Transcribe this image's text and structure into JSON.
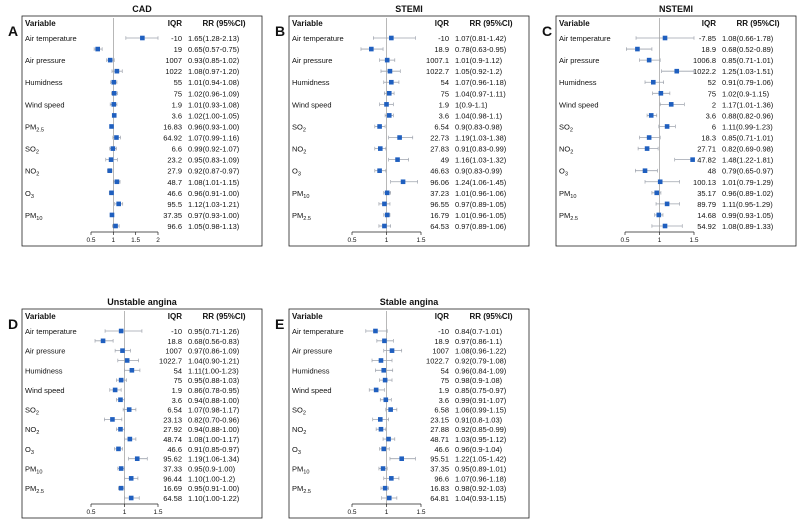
{
  "chart_data": [
    {
      "type": "scatter",
      "letter": "A",
      "title": "CAD",
      "header_variable": "Variable",
      "header_iqr": "IQR",
      "header_rr": "RR (95%CI)",
      "xlim": [
        0.5,
        2
      ],
      "xticks": [
        0.5,
        1,
        1.5,
        2
      ],
      "xticklabels": [
        "0.5",
        "1",
        "1.5",
        "2"
      ],
      "reference_line": 1,
      "variables": [
        "Air temperature",
        "Air pressure",
        "Humidness",
        "Wind speed",
        "PM2.5",
        "SO2",
        "NO2",
        "O3",
        "PM10"
      ],
      "rows": [
        {
          "iqr": "-10",
          "rr": "1.65(1.28-2.13)",
          "est": 1.65,
          "lo": 1.28,
          "hi": 2.13
        },
        {
          "iqr": "19",
          "rr": "0.65(0.57-0.75)",
          "est": 0.65,
          "lo": 0.57,
          "hi": 0.75
        },
        {
          "iqr": "1007",
          "rr": "0.93(0.85-1.02)",
          "est": 0.93,
          "lo": 0.85,
          "hi": 1.02
        },
        {
          "iqr": "1022",
          "rr": "1.08(0.97-1.20)",
          "est": 1.08,
          "lo": 0.97,
          "hi": 1.2
        },
        {
          "iqr": "55",
          "rr": "1.01(0.94-1.08)",
          "est": 1.01,
          "lo": 0.94,
          "hi": 1.08
        },
        {
          "iqr": "75",
          "rr": "1.02(0.96-1.09)",
          "est": 1.02,
          "lo": 0.96,
          "hi": 1.09
        },
        {
          "iqr": "1.9",
          "rr": "1.01(0.93-1.08)",
          "est": 1.01,
          "lo": 0.93,
          "hi": 1.08
        },
        {
          "iqr": "3.6",
          "rr": "1.02(1.00-1.05)",
          "est": 1.02,
          "lo": 1.0,
          "hi": 1.05
        },
        {
          "iqr": "16.83",
          "rr": "0.96(0.93-1.00)",
          "est": 0.96,
          "lo": 0.93,
          "hi": 1.0
        },
        {
          "iqr": "64.92",
          "rr": "1.07(0.99-1.16)",
          "est": 1.07,
          "lo": 0.99,
          "hi": 1.16
        },
        {
          "iqr": "6.6",
          "rr": "0.99(0.92-1.07)",
          "est": 0.99,
          "lo": 0.92,
          "hi": 1.07
        },
        {
          "iqr": "23.2",
          "rr": "0.95(0.83-1.09)",
          "est": 0.95,
          "lo": 0.83,
          "hi": 1.09
        },
        {
          "iqr": "27.9",
          "rr": "0.92(0.87-0.97)",
          "est": 0.92,
          "lo": 0.87,
          "hi": 0.97
        },
        {
          "iqr": "48.7",
          "rr": "1.08(1.01-1.15)",
          "est": 1.08,
          "lo": 1.01,
          "hi": 1.15
        },
        {
          "iqr": "46.6",
          "rr": "0.96(0.91-1.00)",
          "est": 0.96,
          "lo": 0.91,
          "hi": 1.0
        },
        {
          "iqr": "95.5",
          "rr": "1.12(1.03-1.21)",
          "est": 1.12,
          "lo": 1.03,
          "hi": 1.21
        },
        {
          "iqr": "37.35",
          "rr": "0.97(0.93-1.00)",
          "est": 0.97,
          "lo": 0.93,
          "hi": 1.0
        },
        {
          "iqr": "96.6",
          "rr": "1.05(0.98-1.13)",
          "est": 1.05,
          "lo": 0.98,
          "hi": 1.13
        }
      ]
    },
    {
      "type": "scatter",
      "letter": "B",
      "title": "STEMI",
      "header_variable": "Variable",
      "header_iqr": "IQR",
      "header_rr": "RR (95%CI)",
      "xlim": [
        0.5,
        1.5
      ],
      "xticks": [
        0.5,
        1,
        1.5
      ],
      "xticklabels": [
        "0.5",
        "1",
        "1.5"
      ],
      "reference_line": 1,
      "variables": [
        "Air temperature",
        "Air pressure",
        "Humidness",
        "Wind speed",
        "SO2",
        "NO2",
        "O3",
        "PM10",
        "PM2.5"
      ],
      "rows": [
        {
          "iqr": "-10",
          "rr": "1.07(0.81-1.42)",
          "est": 1.07,
          "lo": 0.81,
          "hi": 1.42
        },
        {
          "iqr": "18.9",
          "rr": "0.78(0.63-0.95)",
          "est": 0.78,
          "lo": 0.63,
          "hi": 0.95
        },
        {
          "iqr": "1007.1",
          "rr": "1.01(0.9-1.12)",
          "est": 1.01,
          "lo": 0.9,
          "hi": 1.12
        },
        {
          "iqr": "1022.7",
          "rr": "1.05(0.92-1.2)",
          "est": 1.05,
          "lo": 0.92,
          "hi": 1.2
        },
        {
          "iqr": "54",
          "rr": "1.07(0.96-1.18)",
          "est": 1.07,
          "lo": 0.96,
          "hi": 1.18
        },
        {
          "iqr": "75",
          "rr": "1.04(0.97-1.11)",
          "est": 1.04,
          "lo": 0.97,
          "hi": 1.11
        },
        {
          "iqr": "1.9",
          "rr": "1(0.9-1.1)",
          "est": 1.0,
          "lo": 0.9,
          "hi": 1.1
        },
        {
          "iqr": "3.6",
          "rr": "1.04(0.98-1.1)",
          "est": 1.04,
          "lo": 0.98,
          "hi": 1.1
        },
        {
          "iqr": "6.54",
          "rr": "0.9(0.83-0.98)",
          "est": 0.9,
          "lo": 0.83,
          "hi": 0.98
        },
        {
          "iqr": "22.73",
          "rr": "1.19(1.03-1.38)",
          "est": 1.19,
          "lo": 1.03,
          "hi": 1.38
        },
        {
          "iqr": "27.83",
          "rr": "0.91(0.83-0.99)",
          "est": 0.91,
          "lo": 0.83,
          "hi": 0.99
        },
        {
          "iqr": "49",
          "rr": "1.16(1.03-1.32)",
          "est": 1.16,
          "lo": 1.03,
          "hi": 1.32
        },
        {
          "iqr": "46.63",
          "rr": "0.9(0.83-0.99)",
          "est": 0.9,
          "lo": 0.83,
          "hi": 0.99
        },
        {
          "iqr": "96.06",
          "rr": "1.24(1.06-1.45)",
          "est": 1.24,
          "lo": 1.06,
          "hi": 1.45
        },
        {
          "iqr": "37.23",
          "rr": "1.01(0.96-1.06)",
          "est": 1.01,
          "lo": 0.96,
          "hi": 1.06
        },
        {
          "iqr": "96.55",
          "rr": "0.97(0.89-1.05)",
          "est": 0.97,
          "lo": 0.89,
          "hi": 1.05
        },
        {
          "iqr": "16.79",
          "rr": "1.01(0.96-1.05)",
          "est": 1.01,
          "lo": 0.96,
          "hi": 1.05
        },
        {
          "iqr": "64.53",
          "rr": "0.97(0.89-1.06)",
          "est": 0.97,
          "lo": 0.89,
          "hi": 1.06
        }
      ]
    },
    {
      "type": "scatter",
      "letter": "C",
      "title": "NSTEMI",
      "header_variable": "Variable",
      "header_iqr": "IQR",
      "header_rr": "RR (95%CI)",
      "xlim": [
        0.5,
        1.5
      ],
      "xticks": [
        0.5,
        1,
        1.5
      ],
      "xticklabels": [
        "0.5",
        "1",
        "1.5"
      ],
      "reference_line": 1,
      "variables": [
        "Air temperature",
        "Air pressure",
        "Humidness",
        "Wind speed",
        "SO2",
        "NO2",
        "O3",
        "PM10",
        "PM2.5"
      ],
      "rows": [
        {
          "iqr": "-7.85",
          "rr": "1.08(0.66-1.78)",
          "est": 1.08,
          "lo": 0.66,
          "hi": 1.78
        },
        {
          "iqr": "18.9",
          "rr": "0.68(0.52-0.89)",
          "est": 0.68,
          "lo": 0.52,
          "hi": 0.89
        },
        {
          "iqr": "1006.8",
          "rr": "0.85(0.71-1.01)",
          "est": 0.85,
          "lo": 0.71,
          "hi": 1.01
        },
        {
          "iqr": "1022.2",
          "rr": "1.25(1.03-1.51)",
          "est": 1.25,
          "lo": 1.03,
          "hi": 1.51
        },
        {
          "iqr": "52",
          "rr": "0.91(0.79-1.06)",
          "est": 0.91,
          "lo": 0.79,
          "hi": 1.06
        },
        {
          "iqr": "75",
          "rr": "1.02(0.9-1.15)",
          "est": 1.02,
          "lo": 0.9,
          "hi": 1.15
        },
        {
          "iqr": "2",
          "rr": "1.17(1.01-1.36)",
          "est": 1.17,
          "lo": 1.01,
          "hi": 1.36
        },
        {
          "iqr": "3.6",
          "rr": "0.88(0.82-0.96)",
          "est": 0.88,
          "lo": 0.82,
          "hi": 0.96
        },
        {
          "iqr": "6",
          "rr": "1.11(0.99-1.23)",
          "est": 1.11,
          "lo": 0.99,
          "hi": 1.23
        },
        {
          "iqr": "18.3",
          "rr": "0.85(0.71-1.01)",
          "est": 0.85,
          "lo": 0.71,
          "hi": 1.01
        },
        {
          "iqr": "27.71",
          "rr": "0.82(0.69-0.98)",
          "est": 0.82,
          "lo": 0.69,
          "hi": 0.98
        },
        {
          "iqr": "47.82",
          "rr": "1.48(1.22-1.81)",
          "est": 1.48,
          "lo": 1.22,
          "hi": 1.81
        },
        {
          "iqr": "48",
          "rr": "0.79(0.65-0.97)",
          "est": 0.79,
          "lo": 0.65,
          "hi": 0.97
        },
        {
          "iqr": "100.13",
          "rr": "1.01(0.79-1.29)",
          "est": 1.01,
          "lo": 0.79,
          "hi": 1.29
        },
        {
          "iqr": "35.17",
          "rr": "0.96(0.89-1.02)",
          "est": 0.96,
          "lo": 0.89,
          "hi": 1.02
        },
        {
          "iqr": "89.79",
          "rr": "1.11(0.95-1.29)",
          "est": 1.11,
          "lo": 0.95,
          "hi": 1.29
        },
        {
          "iqr": "14.68",
          "rr": "0.99(0.93-1.05)",
          "est": 0.99,
          "lo": 0.93,
          "hi": 1.05
        },
        {
          "iqr": "54.92",
          "rr": "1.08(0.89-1.33)",
          "est": 1.08,
          "lo": 0.89,
          "hi": 1.33
        }
      ]
    },
    {
      "type": "scatter",
      "letter": "D",
      "title": "Unstable angina",
      "header_variable": "Variable",
      "header_iqr": "IQR",
      "header_rr": "RR (95%CI)",
      "xlim": [
        0.5,
        1.5
      ],
      "xticks": [
        0.5,
        1,
        1.5
      ],
      "xticklabels": [
        "0.5",
        "1",
        "1.5"
      ],
      "reference_line": 1,
      "variables": [
        "Air temperature",
        "Air pressure",
        "Humidness",
        "Wind speed",
        "SO2",
        "NO2",
        "O3",
        "PM10",
        "PM2.5"
      ],
      "rows": [
        {
          "iqr": "-10",
          "rr": "0.95(0.71-1.26)",
          "est": 0.95,
          "lo": 0.71,
          "hi": 1.26
        },
        {
          "iqr": "18.8",
          "rr": "0.68(0.56-0.83)",
          "est": 0.68,
          "lo": 0.56,
          "hi": 0.83
        },
        {
          "iqr": "1007",
          "rr": "0.97(0.86-1.09)",
          "est": 0.97,
          "lo": 0.86,
          "hi": 1.09
        },
        {
          "iqr": "1022.7",
          "rr": "1.04(0.90-1.21)",
          "est": 1.04,
          "lo": 0.9,
          "hi": 1.21
        },
        {
          "iqr": "54",
          "rr": "1.11(1.00-1.23)",
          "est": 1.11,
          "lo": 1.0,
          "hi": 1.23
        },
        {
          "iqr": "75",
          "rr": "0.95(0.88-1.03)",
          "est": 0.95,
          "lo": 0.88,
          "hi": 1.03
        },
        {
          "iqr": "1.9",
          "rr": "0.86(0.78-0.95)",
          "est": 0.86,
          "lo": 0.78,
          "hi": 0.95
        },
        {
          "iqr": "3.6",
          "rr": "0.94(0.88-1.00)",
          "est": 0.94,
          "lo": 0.88,
          "hi": 1.0
        },
        {
          "iqr": "6.54",
          "rr": "1.07(0.98-1.17)",
          "est": 1.07,
          "lo": 0.98,
          "hi": 1.17
        },
        {
          "iqr": "23.13",
          "rr": "0.82(0.70-0.96)",
          "est": 0.82,
          "lo": 0.7,
          "hi": 0.96
        },
        {
          "iqr": "27.92",
          "rr": "0.94(0.88-1.00)",
          "est": 0.94,
          "lo": 0.88,
          "hi": 1.0
        },
        {
          "iqr": "48.74",
          "rr": "1.08(1.00-1.17)",
          "est": 1.08,
          "lo": 1.0,
          "hi": 1.17
        },
        {
          "iqr": "46.6",
          "rr": "0.91(0.85-0.97)",
          "est": 0.91,
          "lo": 0.85,
          "hi": 0.97
        },
        {
          "iqr": "95.62",
          "rr": "1.19(1.06-1.34)",
          "est": 1.19,
          "lo": 1.06,
          "hi": 1.34
        },
        {
          "iqr": "37.33",
          "rr": "0.95(0.9-1.00)",
          "est": 0.95,
          "lo": 0.9,
          "hi": 1.0
        },
        {
          "iqr": "96.44",
          "rr": "1.10(1.00-1.2)",
          "est": 1.1,
          "lo": 1.0,
          "hi": 1.2
        },
        {
          "iqr": "16.69",
          "rr": "0.95(0.91-1.00)",
          "est": 0.95,
          "lo": 0.91,
          "hi": 1.0
        },
        {
          "iqr": "64.58",
          "rr": "1.10(1.00-1.22)",
          "est": 1.1,
          "lo": 1.0,
          "hi": 1.22
        }
      ]
    },
    {
      "type": "scatter",
      "letter": "E",
      "title": "Stable angina",
      "header_variable": "Variable",
      "header_iqr": "IQR",
      "header_rr": "RR (95%CI)",
      "xlim": [
        0.5,
        1.5
      ],
      "xticks": [
        0.5,
        1,
        1.5
      ],
      "xticklabels": [
        "0.5",
        "1",
        "1.5"
      ],
      "reference_line": 1,
      "variables": [
        "Air temperature",
        "Air pressure",
        "Humidness",
        "Wind speed",
        "SO2",
        "NO2",
        "O3",
        "PM10",
        "PM2.5"
      ],
      "rows": [
        {
          "iqr": "-10",
          "rr": "0.84(0.7-1.01)",
          "est": 0.84,
          "lo": 0.7,
          "hi": 1.01
        },
        {
          "iqr": "18.9",
          "rr": "0.97(0.86-1.1)",
          "est": 0.97,
          "lo": 0.86,
          "hi": 1.1
        },
        {
          "iqr": "1007",
          "rr": "1.08(0.96-1.22)",
          "est": 1.08,
          "lo": 0.96,
          "hi": 1.22
        },
        {
          "iqr": "1022.7",
          "rr": "0.92(0.79-1.08)",
          "est": 0.92,
          "lo": 0.79,
          "hi": 1.08
        },
        {
          "iqr": "54",
          "rr": "0.96(0.84-1.09)",
          "est": 0.96,
          "lo": 0.84,
          "hi": 1.09
        },
        {
          "iqr": "75",
          "rr": "0.98(0.9-1.08)",
          "est": 0.98,
          "lo": 0.9,
          "hi": 1.08
        },
        {
          "iqr": "1.9",
          "rr": "0.85(0.75-0.97)",
          "est": 0.85,
          "lo": 0.75,
          "hi": 0.97
        },
        {
          "iqr": "3.6",
          "rr": "0.99(0.91-1.07)",
          "est": 0.99,
          "lo": 0.91,
          "hi": 1.07
        },
        {
          "iqr": "6.58",
          "rr": "1.06(0.99-1.15)",
          "est": 1.06,
          "lo": 0.99,
          "hi": 1.15
        },
        {
          "iqr": "23.15",
          "rr": "0.91(0.8-1.03)",
          "est": 0.91,
          "lo": 0.8,
          "hi": 1.03
        },
        {
          "iqr": "27.88",
          "rr": "0.92(0.85-0.99)",
          "est": 0.92,
          "lo": 0.85,
          "hi": 0.99
        },
        {
          "iqr": "48.71",
          "rr": "1.03(0.95-1.12)",
          "est": 1.03,
          "lo": 0.95,
          "hi": 1.12
        },
        {
          "iqr": "46.6",
          "rr": "0.96(0.9-1.04)",
          "est": 0.96,
          "lo": 0.9,
          "hi": 1.04
        },
        {
          "iqr": "95.51",
          "rr": "1.22(1.05-1.42)",
          "est": 1.22,
          "lo": 1.05,
          "hi": 1.42
        },
        {
          "iqr": "37.35",
          "rr": "0.95(0.89-1.01)",
          "est": 0.95,
          "lo": 0.89,
          "hi": 1.01
        },
        {
          "iqr": "96.6",
          "rr": "1.07(0.96-1.18)",
          "est": 1.07,
          "lo": 0.96,
          "hi": 1.18
        },
        {
          "iqr": "16.83",
          "rr": "0.98(0.92-1.03)",
          "est": 0.98,
          "lo": 0.92,
          "hi": 1.03
        },
        {
          "iqr": "64.81",
          "rr": "1.04(0.93-1.15)",
          "est": 1.04,
          "lo": 0.93,
          "hi": 1.15
        }
      ]
    }
  ],
  "colors": {
    "marker": "#1f5fbf",
    "ci_line": "#9ea3ad",
    "reference_line": "#888888",
    "frame": "#222222",
    "text": "#111111"
  }
}
